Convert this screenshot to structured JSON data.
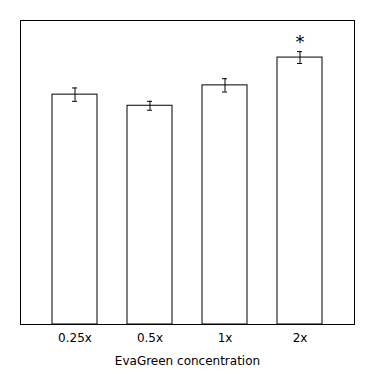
{
  "chart_data": {
    "type": "bar",
    "xlabel": "EvaGreen concentration",
    "categories": [
      "0.25x",
      "0.5x",
      "1x",
      "2x"
    ],
    "values": [
      0.62,
      0.59,
      0.645,
      0.72
    ],
    "errors": [
      0.018,
      0.012,
      0.018,
      0.016
    ],
    "significance": [
      false,
      false,
      false,
      true
    ],
    "significance_symbol": "*",
    "color": "#ffffff",
    "ylim": [
      0,
      0.82
    ],
    "yticks": [],
    "grid": false,
    "tick_labels": "x"
  }
}
